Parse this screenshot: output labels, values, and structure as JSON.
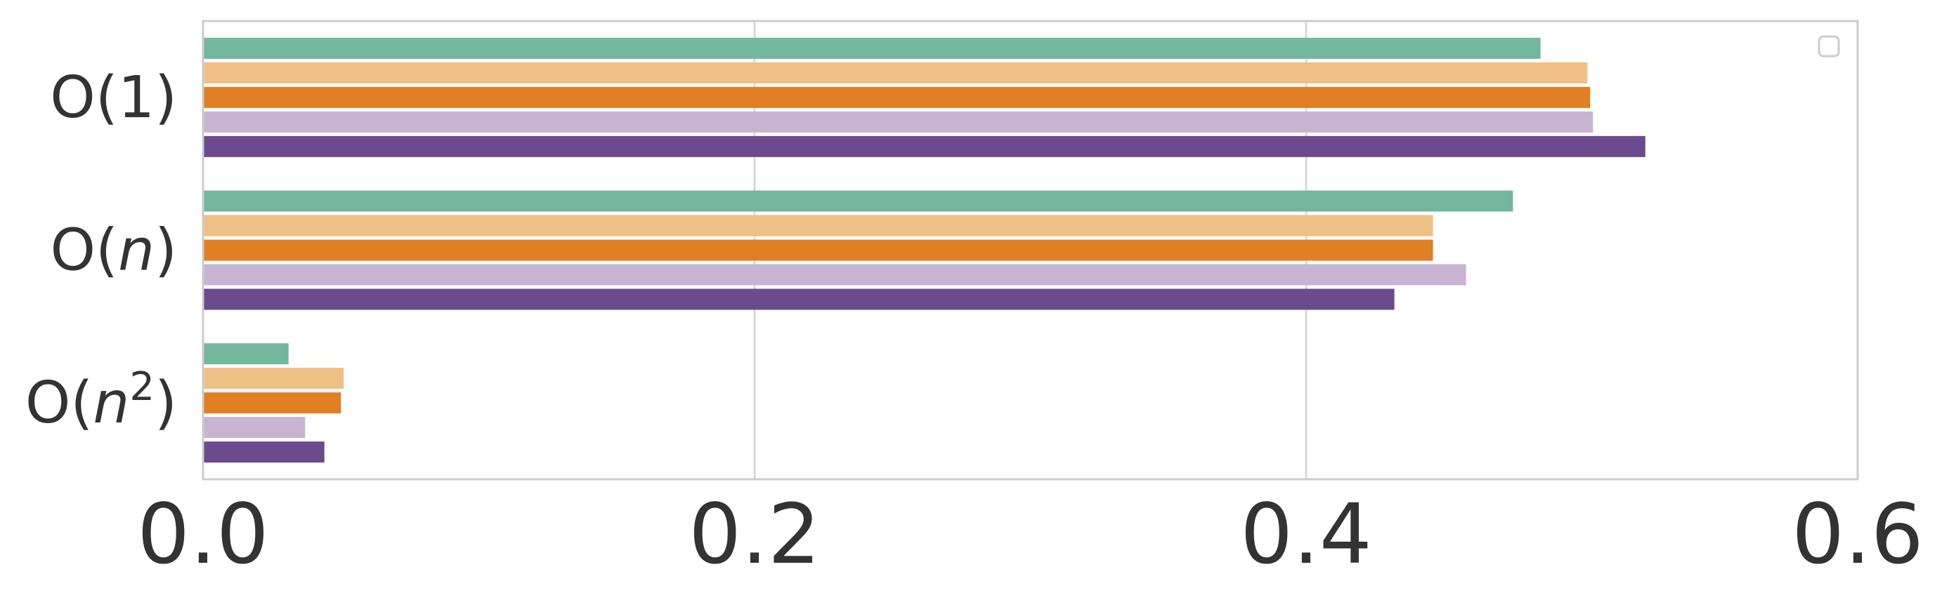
{
  "chart_data": {
    "type": "bar",
    "orientation": "horizontal",
    "categories": [
      {
        "base": "O(",
        "var": "",
        "sup": "",
        "close": "1)"
      },
      {
        "base": "O(",
        "var": "n",
        "sup": "",
        "close": ")"
      },
      {
        "base": "O(",
        "var": "n",
        "sup": "2",
        "close": ")"
      }
    ],
    "series": [
      {
        "color": "#73b79f",
        "values": [
          0.485,
          0.475,
          0.031
        ]
      },
      {
        "color": "#efbf85",
        "values": [
          0.502,
          0.446,
          0.051
        ]
      },
      {
        "color": "#e07f24",
        "values": [
          0.503,
          0.446,
          0.05
        ]
      },
      {
        "color": "#c7b4d3",
        "values": [
          0.504,
          0.458,
          0.037
        ]
      },
      {
        "color": "#6b4a8e",
        "values": [
          0.523,
          0.432,
          0.044
        ]
      }
    ],
    "xlim": [
      0,
      0.6
    ],
    "xticks": [
      "0.0",
      "0.2",
      "0.4",
      "0.6"
    ],
    "grid": true,
    "legend": "top-right, empty",
    "xlabel": "",
    "ylabel": ""
  }
}
